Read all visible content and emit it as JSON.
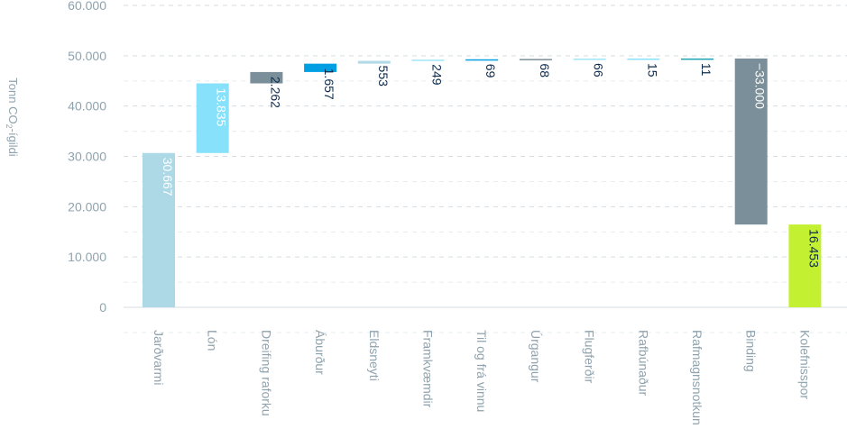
{
  "chart_data": {
    "type": "bar",
    "subtype": "waterfall",
    "ylabel": "Tonn CO₂-ígildi",
    "ylim": [
      0,
      60000
    ],
    "yticks": [
      0,
      10000,
      20000,
      30000,
      40000,
      50000,
      60000
    ],
    "ytick_labels": [
      "0",
      "10.000",
      "20.000",
      "30.000",
      "40.000",
      "50.000",
      "60.000"
    ],
    "grid": "horizontal dashed",
    "categories": [
      "Jarðvarmi",
      "Lón",
      "Dreifing raforku",
      "Áburður",
      "Eldsneyti",
      "Framkvæmdir",
      "Til og frá vinnu",
      "Úrgangur",
      "Flugferðir",
      "Rafbúnaður",
      "Rafmagnsnotkun",
      "Binding",
      "Kolefnisspor"
    ],
    "values": [
      30667,
      13835,
      2262,
      1657,
      553,
      249,
      69,
      68,
      66,
      15,
      11,
      -33000,
      16453
    ],
    "value_labels": [
      "30.667",
      "13.835",
      "2.262",
      "1.657",
      "553",
      "249",
      "69",
      "68",
      "66",
      "15",
      "11",
      "−33.000",
      "16.453"
    ],
    "bar_kind": [
      "total",
      "step",
      "step",
      "step",
      "step",
      "step",
      "step",
      "step",
      "step",
      "step",
      "step",
      "step",
      "total"
    ],
    "colors": [
      "#add8e6",
      "#87e1fb",
      "#7a8f99",
      "#009fe3",
      "#b2dbe6",
      "#a0e5f7",
      "#009fe3",
      "#7a8f99",
      "#a0e5f7",
      "#87e1fb",
      "#1aa3b0",
      "#7a8f99",
      "#c4f032"
    ],
    "label_colors": [
      "#ffffff",
      "#ffffff",
      "#0d2b4d",
      "#0d2b4d",
      "#0d2b4d",
      "#0d2b4d",
      "#0d2b4d",
      "#0d2b4d",
      "#0d2b4d",
      "#0d2b4d",
      "#0d2b4d",
      "#ffffff",
      "#0d2b4d"
    ]
  }
}
